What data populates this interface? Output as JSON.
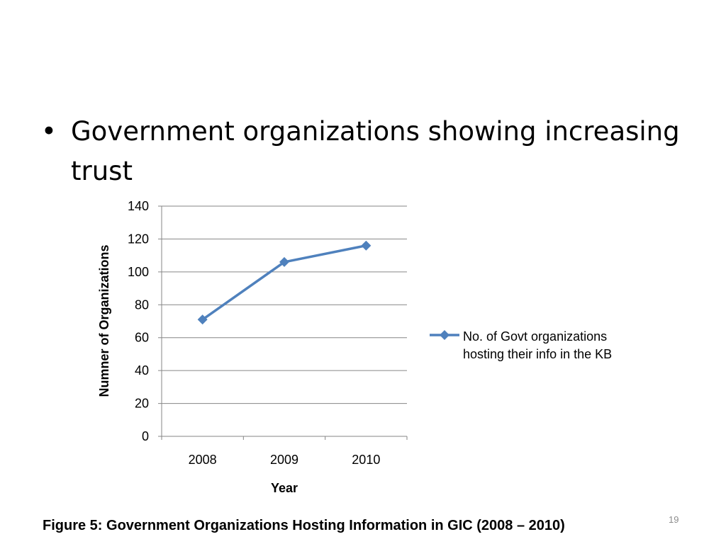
{
  "slide": {
    "bullet_symbol": "•",
    "bullet_text": "Government organizations showing increasing trust",
    "caption": "Figure 5: Government Organizations Hosting Information in GIC (2008 – 2010)",
    "slide_number": "19"
  },
  "chart_data": {
    "type": "line",
    "title": "",
    "xlabel": "Year",
    "ylabel": "Numner of Organizations",
    "categories": [
      "2008",
      "2009",
      "2010"
    ],
    "series": [
      {
        "name": "No. of Govt organizations hosting their info in the KB",
        "values": [
          71,
          106,
          116
        ]
      }
    ],
    "ylim": [
      0,
      140
    ],
    "yticks": [
      0,
      20,
      40,
      60,
      80,
      100,
      120,
      140
    ],
    "grid": true,
    "legend": "right",
    "line_color": "#4f81bd",
    "grid_color": "#868686"
  }
}
